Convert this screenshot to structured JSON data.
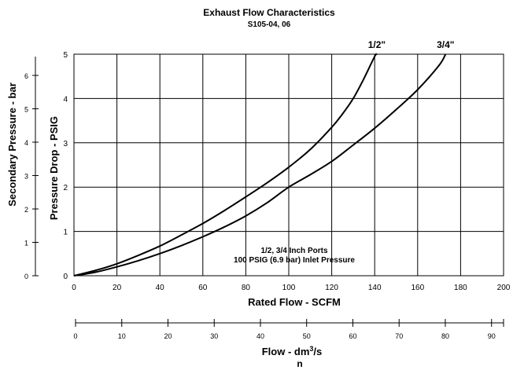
{
  "chart_data": {
    "type": "line",
    "title": "Exhaust Flow Characteristics",
    "subtitle": "S105-04, 06",
    "xlabel": "Rated Flow - SCFM",
    "ylabel": "Pressure Drop - PSIG",
    "y2label": "Secondary Pressure - bar",
    "x2label": "Flow - dm",
    "x2label_sup": "3",
    "x2label_tail": "/s",
    "x2label_sub": "n",
    "xlim": [
      0,
      200
    ],
    "ylim": [
      0,
      5
    ],
    "x_ticks": [
      "0",
      "20",
      "40",
      "60",
      "80",
      "100",
      "120",
      "140",
      "160",
      "180",
      "200"
    ],
    "y_ticks": [
      "0",
      "1",
      "2",
      "3",
      "4",
      "5"
    ],
    "y2_ticks": [
      "0",
      "1",
      "2",
      "3",
      "4",
      "5",
      "6"
    ],
    "x2_ticks": [
      "0",
      "10",
      "20",
      "30",
      "40",
      "50",
      "60",
      "70",
      "80",
      "90"
    ],
    "annotation_lines": [
      "1/2, 3/4 Inch Ports",
      "100 PSIG (6.9 bar) Inlet Pressure"
    ],
    "grid": true,
    "series": [
      {
        "name": "1/2\"",
        "x": [
          0,
          10,
          20,
          30,
          40,
          50,
          60,
          70,
          80,
          90,
          100,
          110,
          120,
          125,
          130,
          135,
          140,
          141
        ],
        "y": [
          0,
          0.12,
          0.27,
          0.46,
          0.67,
          0.92,
          1.18,
          1.47,
          1.78,
          2.1,
          2.45,
          2.85,
          3.35,
          3.65,
          4.0,
          4.45,
          4.95,
          5.0
        ]
      },
      {
        "name": "3/4\"",
        "x": [
          0,
          10,
          20,
          30,
          40,
          50,
          60,
          70,
          80,
          90,
          100,
          110,
          120,
          130,
          140,
          150,
          160,
          170,
          173
        ],
        "y": [
          0,
          0.08,
          0.2,
          0.34,
          0.5,
          0.68,
          0.88,
          1.1,
          1.35,
          1.65,
          2.0,
          2.28,
          2.58,
          2.95,
          3.33,
          3.75,
          4.2,
          4.75,
          5.0
        ]
      }
    ]
  }
}
